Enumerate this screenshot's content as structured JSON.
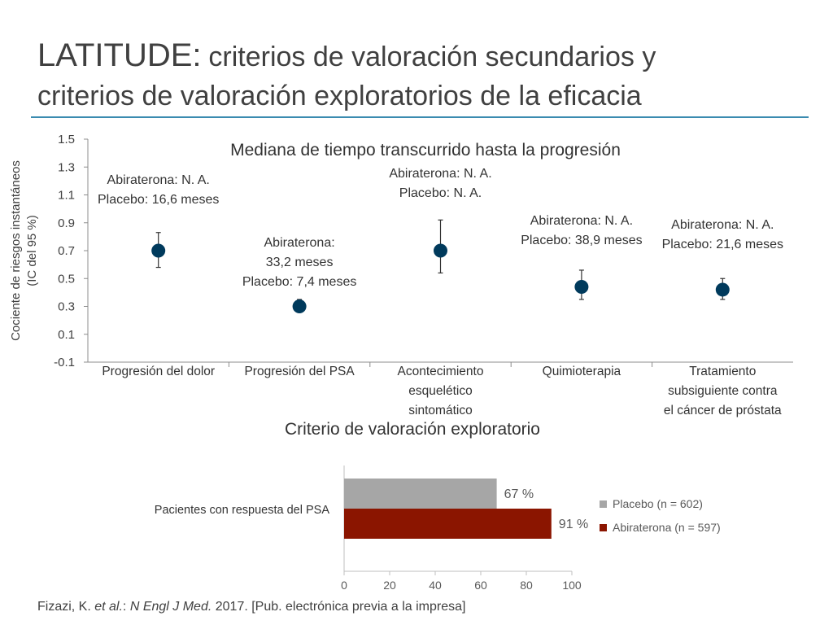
{
  "slide": {
    "title_main": "LATITUDE:",
    "title_rest": "criterios de valoración secundarios y",
    "title_line2": "criterios de valoración exploratorios de la eficacia",
    "reference_text": "Fizazi, K. et al.: N Engl J Med. 2017. [Pub. electrónica previa a la impresa]"
  },
  "chart_data": [
    {
      "type": "scatter",
      "title": "Mediana de tiempo transcurrido hasta la progresión",
      "ylabel_lines": [
        "Cociente de riesgos instantáneos",
        "(IC del 95 %)"
      ],
      "ylim": [
        -0.1,
        1.5
      ],
      "yticks": [
        "1.5",
        "1.3",
        "1.1",
        "0.9",
        "0.7",
        "0.5",
        "0.3",
        "0.1",
        "-0.1"
      ],
      "grid": false,
      "marker_color": "#003a5c",
      "categories": [
        {
          "label_lines": [
            "Progresión del dolor"
          ],
          "hr": 0.7,
          "ci": [
            0.58,
            0.83
          ],
          "annotation": [
            "Abiraterona: N. A.",
            "Placebo: 16,6 meses"
          ]
        },
        {
          "label_lines": [
            "Progresión del PSA"
          ],
          "hr": 0.3,
          "ci": [
            0.26,
            0.35
          ],
          "annotation": [
            "Abiraterona:",
            "33,2 meses",
            "Placebo: 7,4 meses"
          ]
        },
        {
          "label_lines": [
            "Acontecimiento",
            "esquelético",
            "sintomático"
          ],
          "hr": 0.7,
          "ci": [
            0.54,
            0.92
          ],
          "annotation": [
            "Abiraterona: N. A.",
            "Placebo: N. A."
          ]
        },
        {
          "label_lines": [
            "Quimioterapia"
          ],
          "hr": 0.44,
          "ci": [
            0.35,
            0.56
          ],
          "annotation": [
            "Abiraterona: N. A.",
            "Placebo: 38,9 meses"
          ]
        },
        {
          "label_lines": [
            "Tratamiento",
            "subsiguiente contra",
            "el cáncer de próstata"
          ],
          "hr": 0.42,
          "ci": [
            0.35,
            0.5
          ],
          "annotation": [
            "Abiraterona: N. A.",
            "Placebo: 21,6 meses"
          ]
        }
      ]
    },
    {
      "type": "bar",
      "orientation": "horizontal",
      "title": "Criterio de valoración exploratorio",
      "categories": [
        "Pacientes con respuesta del PSA"
      ],
      "xlim": [
        0,
        100
      ],
      "xticks": [
        "0",
        "20",
        "40",
        "60",
        "80",
        "100"
      ],
      "legend_position": "right",
      "series": [
        {
          "name": "Placebo (n = 602)",
          "values": [
            67
          ],
          "label": "67 %",
          "color": "#a6a6a6"
        },
        {
          "name": "Abiraterona (n = 597)",
          "values": [
            91
          ],
          "label": "91 %",
          "color": "#8b1500"
        }
      ]
    }
  ]
}
